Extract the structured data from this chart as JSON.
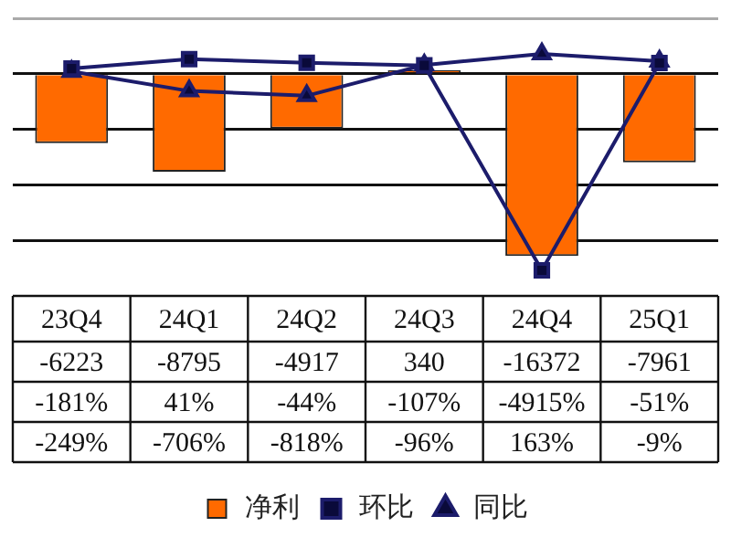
{
  "chart_data": {
    "type": "bar",
    "categories": [
      "23Q4",
      "24Q1",
      "24Q2",
      "24Q3",
      "24Q4",
      "25Q1"
    ],
    "series": [
      {
        "name": "净利",
        "color": "#ff6a00",
        "values": [
          -6223,
          -8795,
          -4917,
          340,
          -16372,
          -7961
        ],
        "value_labels": [
          "-6223",
          "-8795",
          "-4917",
          "340",
          "-16372",
          "-7961"
        ]
      },
      {
        "name": "环比",
        "type": "line",
        "axis": "y2",
        "marker": "square",
        "color": "#1c1c6b",
        "values": [
          -181,
          41,
          -44,
          -107,
          -4915,
          -51
        ],
        "value_labels": [
          "-181%",
          "41%",
          "-44%",
          "-107%",
          "-4915%",
          "-51%"
        ]
      },
      {
        "name": "同比",
        "type": "line",
        "axis": "y2",
        "marker": "triangle",
        "color": "#1c1c6b",
        "values": [
          -249,
          -706,
          -818,
          -96,
          163,
          -9
        ],
        "value_labels": [
          "-249%",
          "-706%",
          "-818%",
          "-96%",
          "163%",
          "-9%"
        ]
      }
    ],
    "ylim": [
      -18000,
      5000
    ],
    "yticks": [
      {
        "value": -15000,
        "label": null
      },
      {
        "value": -10000,
        "label": null
      },
      {
        "value": -5000,
        "label": null
      },
      {
        "value": 0,
        "label": null
      },
      {
        "value": 5000,
        "label": null
      }
    ],
    "grid": "y",
    "legend": "bottom",
    "tick_labels": "x"
  }
}
